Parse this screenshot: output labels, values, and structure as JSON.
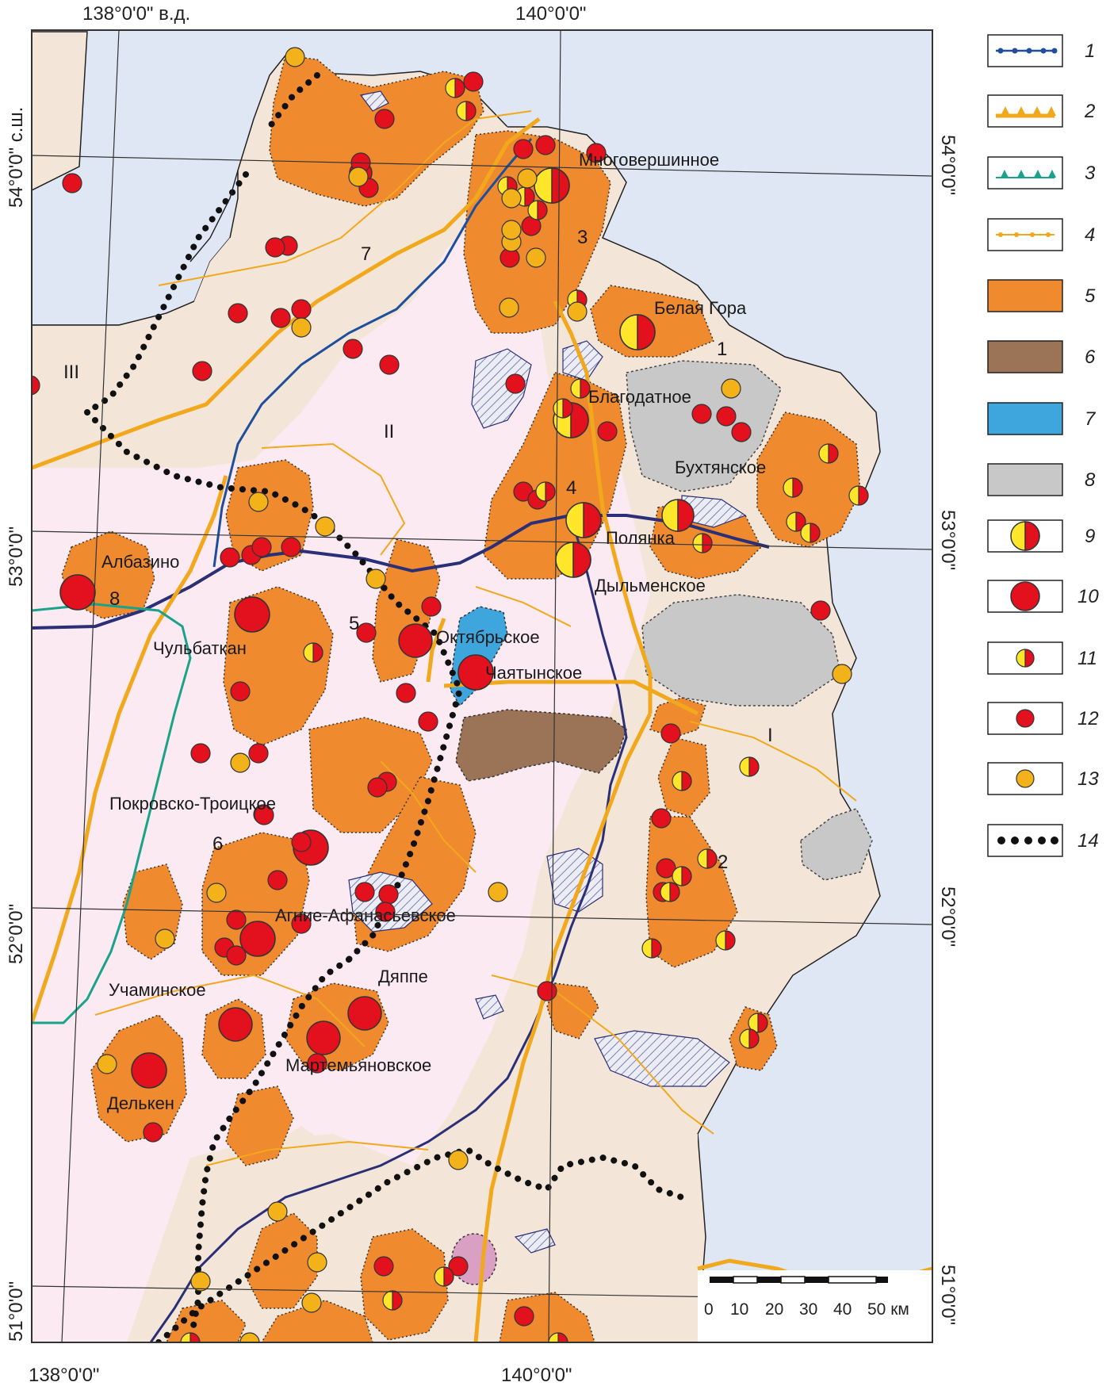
{
  "coordinates": {
    "top_lon_left": "138°0'0\" в.д.",
    "top_lon_right": "140°0'0\"",
    "bottom_lon_left": "138°0'0\"",
    "bottom_lon_right": "140°0'0\"",
    "lat_54_left": "54°0'0\" с.ш.",
    "lat_53_left": "53°0'0\"",
    "lat_52_left": "52°0'0\"",
    "lat_51_left": "51°0'0\"",
    "lat_54_right": "54°0'0\"",
    "lat_53_right": "53°0'0\"",
    "lat_52_right": "52°0'0\"",
    "lat_51_right": "51°0'0\""
  },
  "places": [
    {
      "id": "mnogovershinnoe",
      "name": "Многовершинное"
    },
    {
      "id": "belaya-gora",
      "name": "Белая Гора"
    },
    {
      "id": "blagodatnoe",
      "name": "Благодатное"
    },
    {
      "id": "bukhtyanskoe",
      "name": "Бухтянское"
    },
    {
      "id": "polyanka",
      "name": "Полянка"
    },
    {
      "id": "dylmenskoe",
      "name": "Дыльменское"
    },
    {
      "id": "albazino",
      "name": "Албазино"
    },
    {
      "id": "chulbatkan",
      "name": "Чульбаткан"
    },
    {
      "id": "oktyabrskoe",
      "name": "Октябрьское"
    },
    {
      "id": "chayatynskoe",
      "name": "Чаятынское"
    },
    {
      "id": "pokrovsko-troitskoe",
      "name": "Покровско-Троицкое"
    },
    {
      "id": "agnie-afanasevskoe",
      "name": "Агние-Афанасьевское"
    },
    {
      "id": "dyappe",
      "name": "Дяппе"
    },
    {
      "id": "uchaminskoe",
      "name": "Учаминское"
    },
    {
      "id": "martemyanovskoe",
      "name": "Мартемьяновское"
    },
    {
      "id": "delken",
      "name": "Делькен"
    }
  ],
  "region_numbers": {
    "r1": "1",
    "r2": "2",
    "r3": "3",
    "r4": "4",
    "r5": "5",
    "r6": "6",
    "r7": "7",
    "r8": "8",
    "rI": "I",
    "rII": "II",
    "rIII": "III"
  },
  "legend": {
    "items": [
      {
        "label": "1",
        "symbol": "blue-dotted-line"
      },
      {
        "label": "2",
        "symbol": "orange-thrust-line"
      },
      {
        "label": "3",
        "symbol": "green-thrust-line"
      },
      {
        "label": "4",
        "symbol": "thin-orange-dotted-line"
      },
      {
        "label": "5",
        "symbol": "orange-fill",
        "color": "#ef8a2f"
      },
      {
        "label": "6",
        "symbol": "brown-fill",
        "color": "#9b7457"
      },
      {
        "label": "7",
        "symbol": "blue-fill",
        "color": "#3ea6dc"
      },
      {
        "label": "8",
        "symbol": "grey-fill",
        "color": "#c8c8c8"
      },
      {
        "label": "9",
        "symbol": "large-bicolor-circle"
      },
      {
        "label": "10",
        "symbol": "large-red-circle"
      },
      {
        "label": "11",
        "symbol": "small-bicolor-circle"
      },
      {
        "label": "12",
        "symbol": "small-red-circle"
      },
      {
        "label": "13",
        "symbol": "small-orange-circle"
      },
      {
        "label": "14",
        "symbol": "black-dotted-line"
      }
    ]
  },
  "scale": {
    "ticks": [
      "0",
      "10",
      "20",
      "30",
      "40",
      "50 км"
    ]
  },
  "colors": {
    "sea": "#dfe6f4",
    "land_beige": "#f3e6d9",
    "land_pink": "#fbeaf1",
    "orange_pluton": "#ef8a2f",
    "brown": "#9b7457",
    "blue_basin": "#3ea6dc",
    "grey": "#c8c8c8",
    "red": "#e3101e",
    "yellow": "#ffe62b",
    "orange_dot": "#f4b21a",
    "boundary_orange": "#f2a81c",
    "boundary_blue": "#1e4f9c",
    "boundary_green": "#1aa38a"
  }
}
